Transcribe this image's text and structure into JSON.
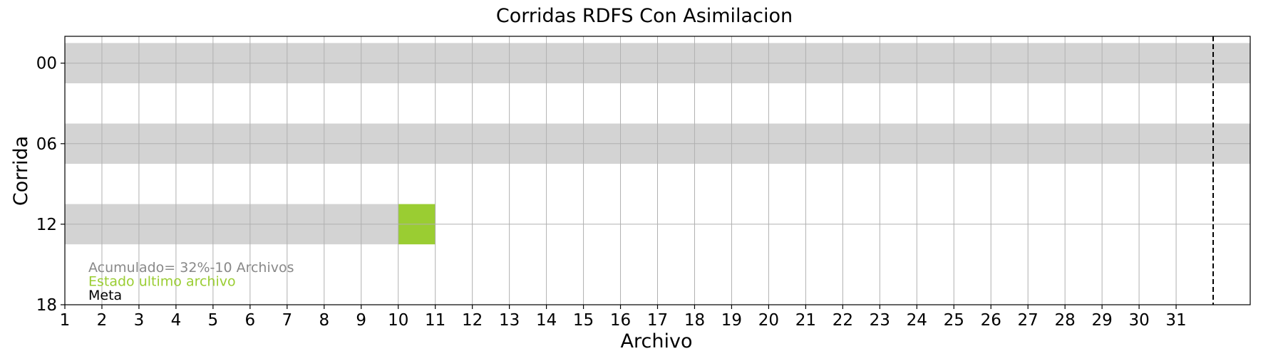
{
  "chart_data": {
    "type": "bar",
    "title": "Corridas RDFS Con Asimilacion",
    "xlabel": "Archivo",
    "ylabel": "Corrida",
    "xlim": [
      1,
      33
    ],
    "ylim": [
      18,
      -2
    ],
    "x_ticks": [
      "1",
      "2",
      "3",
      "4",
      "5",
      "6",
      "7",
      "8",
      "9",
      "10",
      "11",
      "12",
      "13",
      "14",
      "15",
      "16",
      "17",
      "18",
      "19",
      "20",
      "21",
      "22",
      "23",
      "24",
      "25",
      "26",
      "27",
      "28",
      "29",
      "30",
      "31"
    ],
    "y_ticks": [
      "00",
      "06",
      "12",
      "18"
    ],
    "grid": true,
    "meta_line_x": 32,
    "bars": [
      {
        "corrida": "00",
        "y": 0,
        "start": 1,
        "end": 33,
        "status": "background"
      },
      {
        "corrida": "06",
        "y": 6,
        "start": 1,
        "end": 33,
        "status": "background"
      },
      {
        "corrida": "12",
        "y": 12,
        "start": 1,
        "end": 10,
        "status": "accumulated"
      },
      {
        "corrida": "12",
        "y": 12,
        "start": 10,
        "end": 11,
        "status": "last_file"
      }
    ],
    "bar_height": 3,
    "legend": {
      "placement": "lower-left",
      "entries": [
        {
          "label": "Acumulado= 32%-10 Archivos",
          "color": "#888888"
        },
        {
          "label": "Estado ultimo archivo",
          "color": "#9acd32"
        },
        {
          "label": "Meta",
          "color": "#000000"
        }
      ]
    },
    "colors": {
      "background_bar": "#d3d3d3",
      "last_file": "#9acd32",
      "grid": "#b0b0b0",
      "meta_line": "#000000"
    }
  }
}
